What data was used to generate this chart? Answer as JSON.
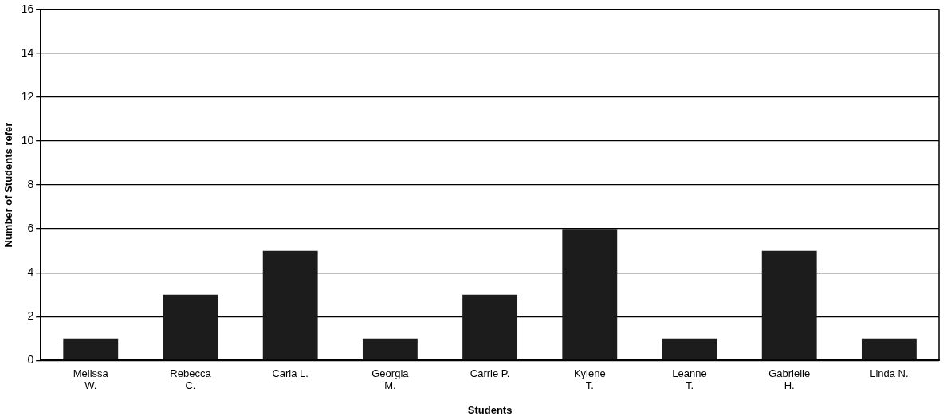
{
  "chart_data": {
    "type": "bar",
    "xlabel": "Students",
    "ylabel": "Number of Students refer",
    "categories": [
      "Melissa\nW.",
      "Rebecca\nC.",
      "Carla L.",
      "Georgia\nM.",
      "Carrie P.",
      "Kylene\nT.",
      "Leanne\nT.",
      "Gabrielle\nH.",
      "Linda N."
    ],
    "values": [
      1,
      3,
      5,
      1,
      3,
      6,
      1,
      5,
      1
    ],
    "color": "#1c1c1c",
    "ylim": [
      0,
      16
    ],
    "yticks": [
      0,
      2,
      4,
      6,
      8,
      10,
      12,
      14,
      16
    ],
    "grid": "y",
    "legend": false
  }
}
